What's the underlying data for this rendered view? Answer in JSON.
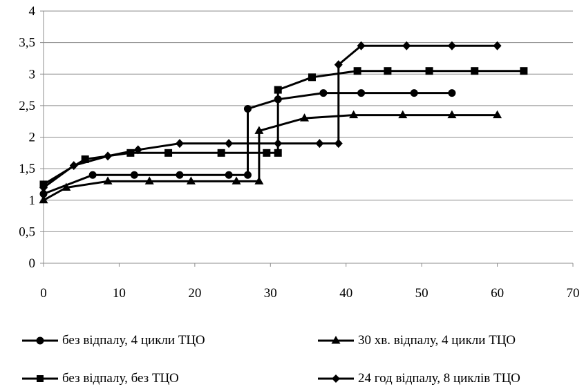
{
  "chart_data": {
    "type": "line",
    "title": "",
    "xlabel": "",
    "ylabel": "",
    "xlim": [
      0,
      70
    ],
    "ylim": [
      0,
      4
    ],
    "x_ticks": [
      "0",
      "10",
      "20",
      "30",
      "40",
      "50",
      "60",
      "70"
    ],
    "y_ticks": [
      "0",
      "0,5",
      "1",
      "1,5",
      "2",
      "2,5",
      "3",
      "3,5",
      "4"
    ],
    "grid": "horizontal",
    "legend_position": "bottom",
    "line_color": "#000000",
    "series": [
      {
        "name": "без відпалу, 4 цикли ТЦО",
        "marker": "circle",
        "points": [
          [
            0,
            1.1
          ],
          [
            6.5,
            1.4
          ],
          [
            12,
            1.4
          ],
          [
            18,
            1.4
          ],
          [
            24.5,
            1.4
          ],
          [
            27,
            1.4
          ],
          [
            27,
            2.45
          ],
          [
            31,
            2.6
          ],
          [
            37,
            2.7
          ],
          [
            42,
            2.7
          ],
          [
            49,
            2.7
          ],
          [
            54,
            2.7
          ]
        ]
      },
      {
        "name": "30 хв. відпалу, 4 цикли ТЦО",
        "marker": "triangle",
        "points": [
          [
            0,
            1.0
          ],
          [
            3,
            1.2
          ],
          [
            8.5,
            1.3
          ],
          [
            14,
            1.3
          ],
          [
            19.5,
            1.3
          ],
          [
            25.5,
            1.3
          ],
          [
            28.5,
            1.3
          ],
          [
            28.5,
            2.1
          ],
          [
            34.5,
            2.3
          ],
          [
            41,
            2.35
          ],
          [
            47.5,
            2.35
          ],
          [
            54,
            2.35
          ],
          [
            60,
            2.35
          ]
        ]
      },
      {
        "name": "без відпалу, без ТЦО",
        "marker": "square",
        "points": [
          [
            0,
            1.25
          ],
          [
            5.5,
            1.65
          ],
          [
            11.5,
            1.75
          ],
          [
            16.5,
            1.75
          ],
          [
            23.5,
            1.75
          ],
          [
            29.5,
            1.75
          ],
          [
            31,
            1.75
          ],
          [
            31,
            2.75
          ],
          [
            35.5,
            2.95
          ],
          [
            41.5,
            3.05
          ],
          [
            45.5,
            3.05
          ],
          [
            51,
            3.05
          ],
          [
            57,
            3.05
          ],
          [
            63.5,
            3.05
          ]
        ]
      },
      {
        "name": "24 год відпалу, 8 циклів ТЦО",
        "marker": "diamond",
        "points": [
          [
            0,
            1.2
          ],
          [
            4,
            1.55
          ],
          [
            8.5,
            1.7
          ],
          [
            12.5,
            1.8
          ],
          [
            18,
            1.9
          ],
          [
            24.5,
            1.9
          ],
          [
            31,
            1.9
          ],
          [
            36.5,
            1.9
          ],
          [
            39,
            1.9
          ],
          [
            39,
            3.15
          ],
          [
            42,
            3.45
          ],
          [
            48,
            3.45
          ],
          [
            54,
            3.45
          ],
          [
            60,
            3.45
          ]
        ]
      }
    ]
  }
}
